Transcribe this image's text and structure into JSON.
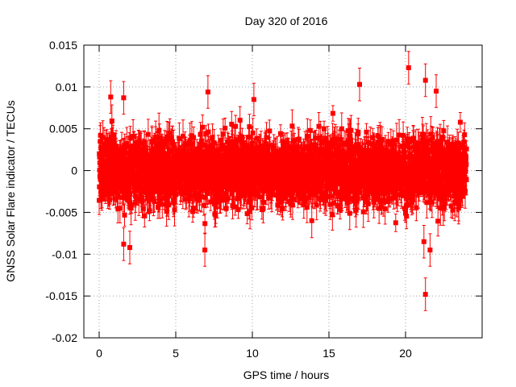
{
  "chart_data": {
    "type": "scatter",
    "title": "Day 320 of 2016",
    "xlabel": "GPS time / hours",
    "ylabel": "GNSS Solar Flare indicator / TECUs",
    "xlim": [
      -1,
      25
    ],
    "ylim": [
      -0.02,
      0.015
    ],
    "xticks": [
      0,
      5,
      10,
      15,
      20
    ],
    "xtick_labels": [
      "0",
      "5",
      "10",
      "15",
      "20"
    ],
    "yticks": [
      -0.02,
      -0.015,
      -0.01,
      -0.005,
      0,
      0.005,
      0.01,
      0.015
    ],
    "ytick_labels": [
      "-0.02",
      "-0.015",
      "-0.01",
      "-0.005",
      "0",
      "0.005",
      "0.01",
      "0.015"
    ],
    "grid": true,
    "marker": "square",
    "error_bars": true,
    "color": "#ff0000",
    "series": [
      {
        "name": "GNSS Solar Flare indicator",
        "x_start": 0,
        "x_end": 23.98,
        "x_step_hours": 0.00833,
        "approx_points": 2880,
        "typical_range": [
          -0.005,
          0.005
        ],
        "typical_error": 0.0015,
        "notable_points": [
          {
            "x": 0.75,
            "y": 0.0088
          },
          {
            "x": 1.6,
            "y": 0.0087
          },
          {
            "x": 7.1,
            "y": 0.0094
          },
          {
            "x": 10.1,
            "y": 0.0085
          },
          {
            "x": 17.0,
            "y": 0.0103
          },
          {
            "x": 20.2,
            "y": 0.0123
          },
          {
            "x": 21.3,
            "y": 0.0108
          },
          {
            "x": 22.0,
            "y": 0.0095
          },
          {
            "x": 1.6,
            "y": -0.0088
          },
          {
            "x": 2.0,
            "y": -0.0092
          },
          {
            "x": 6.9,
            "y": -0.0095
          },
          {
            "x": 21.2,
            "y": -0.0085
          },
          {
            "x": 21.6,
            "y": -0.0095
          },
          {
            "x": 21.3,
            "y": -0.0148
          }
        ]
      }
    ]
  }
}
